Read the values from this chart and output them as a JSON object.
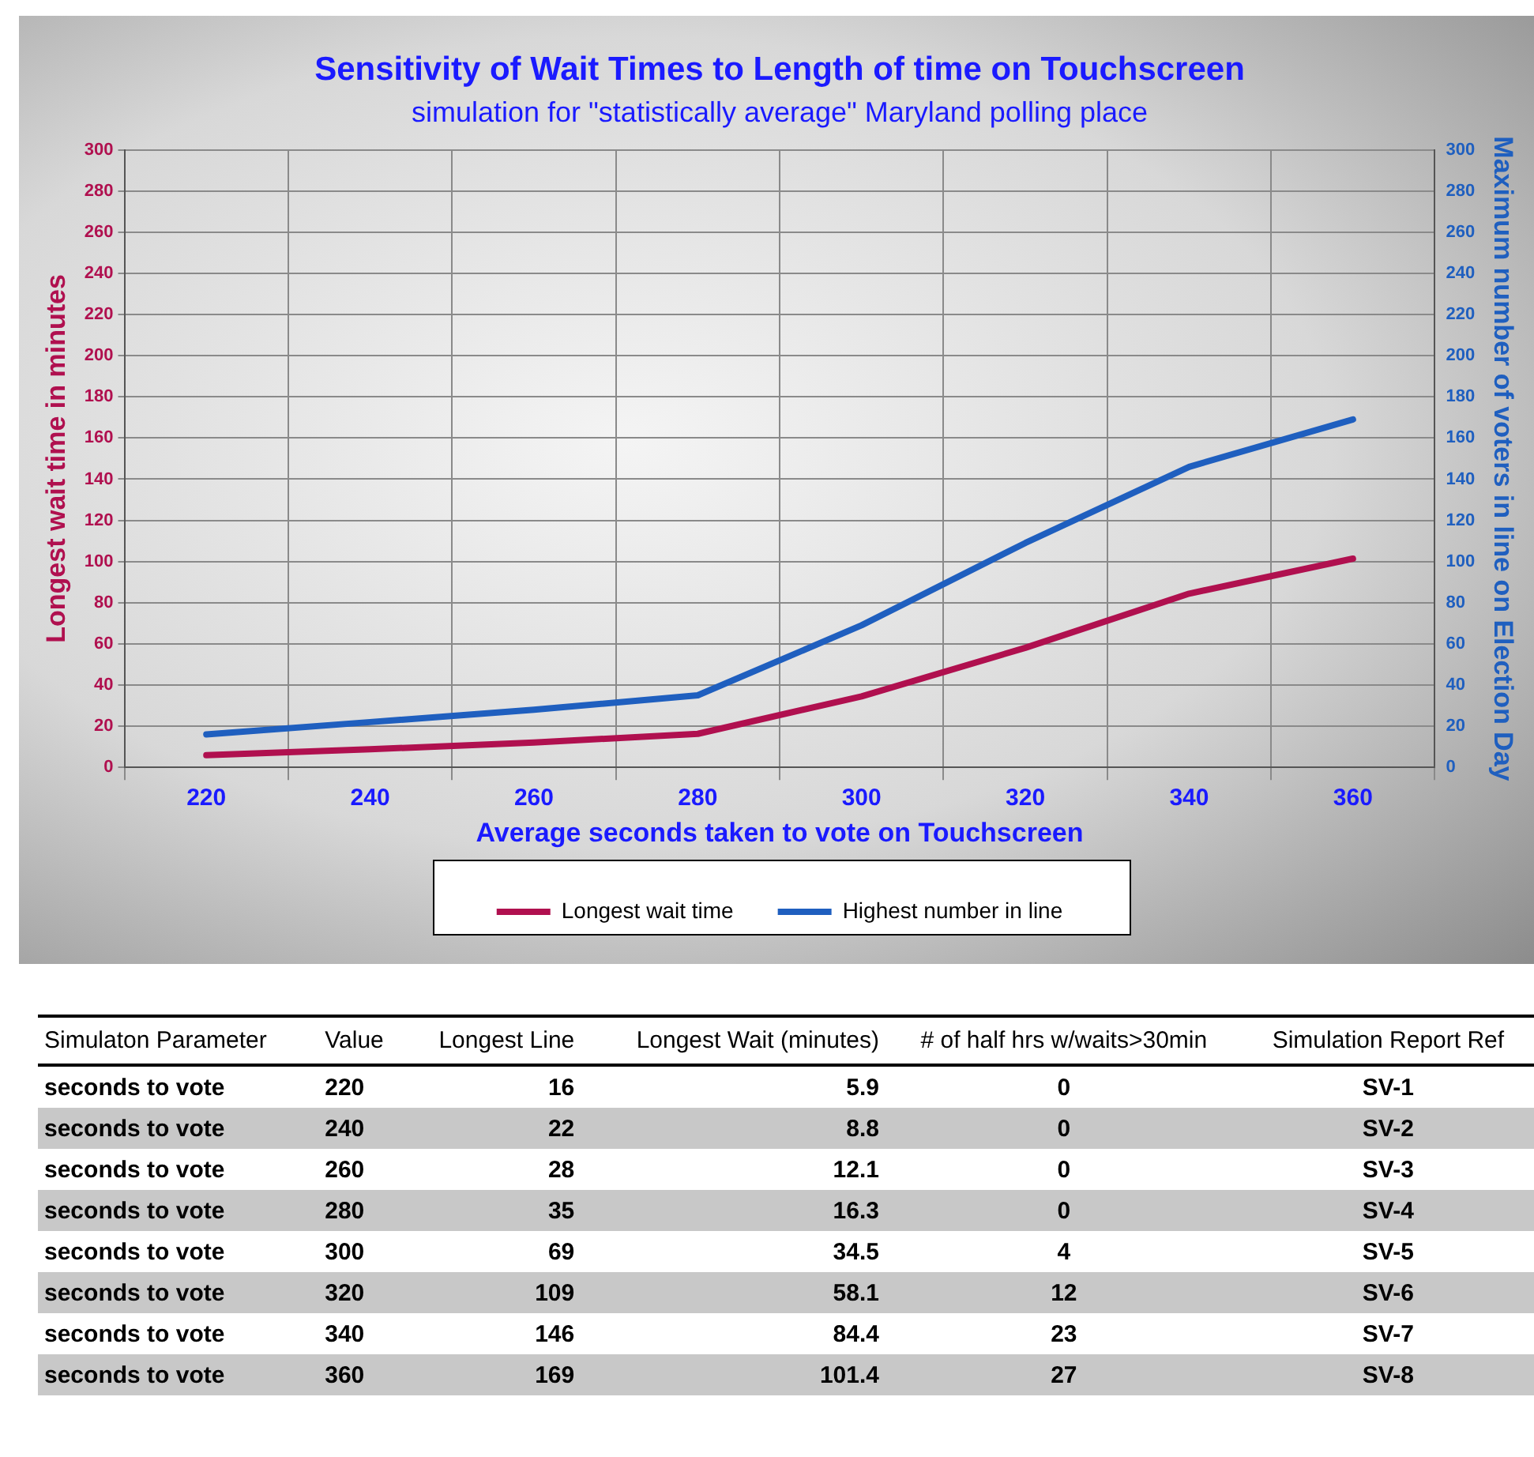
{
  "chart_data": {
    "type": "line",
    "title": "Sensitivity of Wait Times to Length of time on Touchscreen",
    "subtitle": "simulation for \"statistically average\" Maryland polling place",
    "xlabel": "Average seconds taken to vote on Touchscreen",
    "ylabel": "Longest wait time in minutes",
    "y2label": "Maximum number of voters in line on Election Day",
    "categories": [
      "220",
      "240",
      "260",
      "280",
      "300",
      "320",
      "340",
      "360"
    ],
    "series": [
      {
        "name": "Longest wait time",
        "color": "#b0104f",
        "values": [
          5.9,
          8.8,
          12.1,
          16.3,
          34.5,
          58.1,
          84.4,
          101.4
        ]
      },
      {
        "name": "Highest number in line",
        "color": "#1f5fbf",
        "axis": "y2",
        "values": [
          16,
          22,
          28,
          35,
          69,
          109,
          146,
          169
        ]
      }
    ],
    "ylim": [
      0,
      300
    ],
    "yticks": [
      0,
      20,
      40,
      60,
      80,
      100,
      120,
      140,
      160,
      180,
      200,
      220,
      240,
      260,
      280,
      300
    ],
    "y2lim": [
      0,
      300
    ],
    "y2ticks": [
      0,
      20,
      40,
      60,
      80,
      100,
      120,
      140,
      160,
      180,
      200,
      220,
      240,
      260,
      280,
      300
    ],
    "grid": true,
    "legend": "bottom",
    "marker": "none",
    "line_style": "solid",
    "annotations": [
      "Simulaton Parameter",
      "Value",
      "Longest Line",
      "Longest Wait (minutes)",
      "# of half hrs w/waits>30min",
      "Simulation Report Ref",
      "seconds to vote",
      "220",
      "16",
      "5.9",
      "0",
      "SV-1",
      "seconds to vote",
      "240",
      "22",
      "8.8",
      "0",
      "SV-2",
      "seconds to vote",
      "260",
      "28",
      "12.1",
      "0",
      "SV-3",
      "seconds to vote",
      "280",
      "35",
      "16.3",
      "0",
      "SV-4",
      "seconds to vote",
      "300",
      "69",
      "34.5",
      "4",
      "SV-5",
      "seconds to vote",
      "320",
      "109",
      "58.1",
      "12",
      "SV-6",
      "seconds to vote",
      "340",
      "146",
      "84.4",
      "23",
      "SV-7",
      "seconds to vote",
      "360",
      "169",
      "101.4",
      "27",
      "SV-8"
    ]
  }
}
